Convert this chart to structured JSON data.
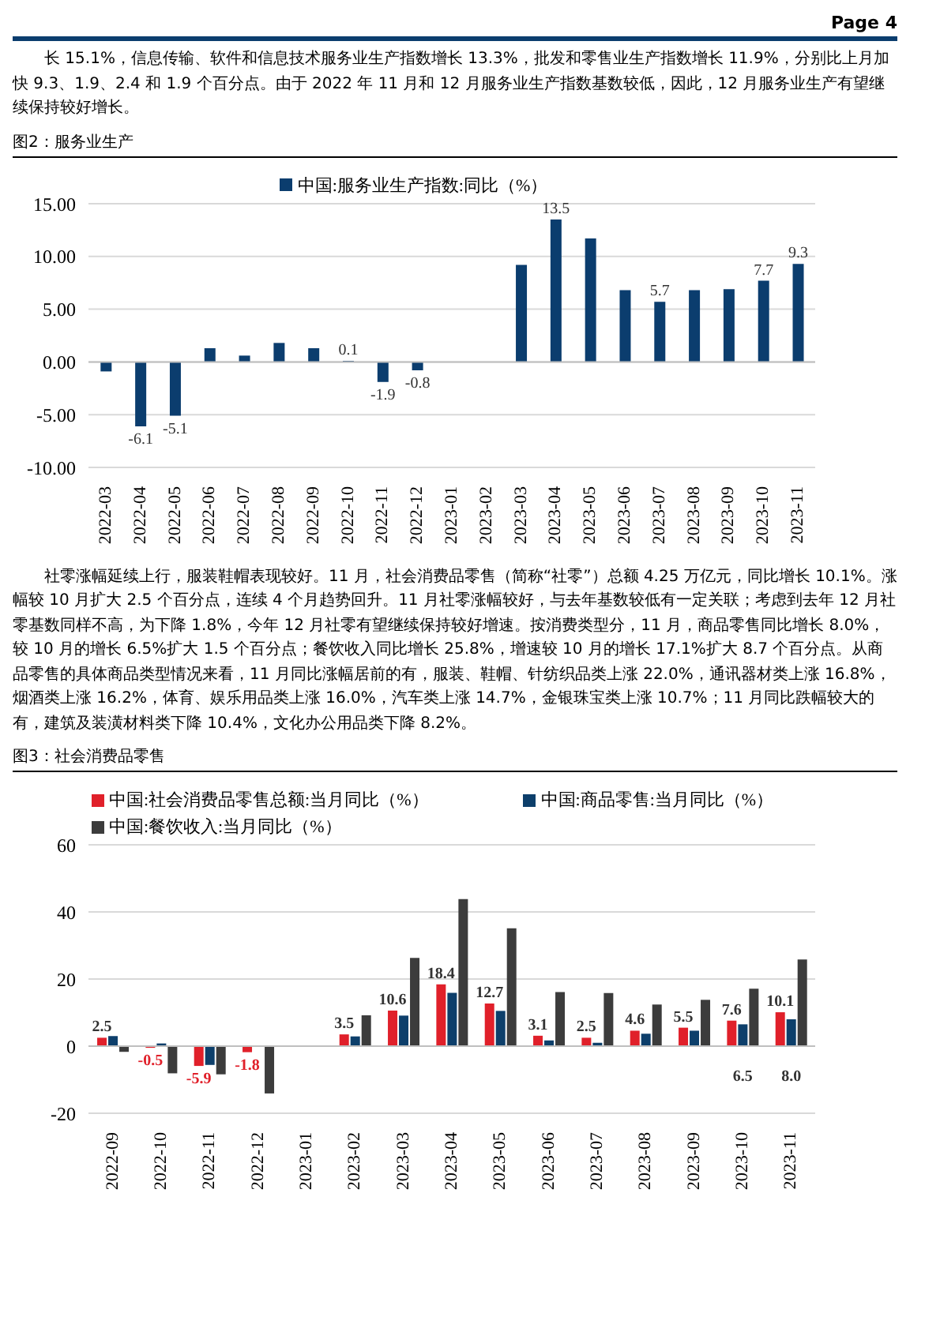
{
  "chart_data": [
    {
      "type": "bar",
      "title": "图2：服务业生产",
      "annotations": [
        "Page 4",
        "长 15.1%，信息传输、软件和信息技术服务业生产指数增长 13.3%，批发和零售业生产指数增长 11.9%，分别比上月加快 9.3、1.9、2.4 和 1.9 个百分点。由于 2022 年 11 月和 12 月服务业生产指数基数较低，因此，12 月服务业生产有望继续保持较好增长。"
      ],
      "categories": [
        "2022-03",
        "2022-04",
        "2022-05",
        "2022-06",
        "2022-07",
        "2022-08",
        "2022-09",
        "2022-10",
        "2022-11",
        "2022-12",
        "2023-01",
        "2023-02",
        "2023-03",
        "2023-04",
        "2023-05",
        "2023-06",
        "2023-07",
        "2023-08",
        "2023-09",
        "2023-10",
        "2023-11"
      ],
      "series": [
        {
          "name": "中国:服务业生产指数:同比（%）",
          "color": "#0b3d6e",
          "values": [
            -0.9,
            -6.1,
            -5.1,
            1.3,
            0.6,
            1.8,
            1.3,
            0.1,
            -1.9,
            -0.8,
            null,
            null,
            9.2,
            13.5,
            11.7,
            6.8,
            5.7,
            6.8,
            6.9,
            7.7,
            9.3
          ],
          "value_labels": [
            null,
            "-6.1",
            "-5.1",
            null,
            null,
            null,
            null,
            "0.1",
            "-1.9",
            "-0.8",
            null,
            null,
            null,
            "13.5",
            null,
            null,
            "5.7",
            null,
            null,
            "7.7",
            "9.3"
          ]
        }
      ],
      "ylim": [
        -10,
        15
      ],
      "yticks": [
        {
          "value": -10,
          "label": "-10.00"
        },
        {
          "value": -5,
          "label": "-5.00"
        },
        {
          "value": 0,
          "label": "0.00"
        },
        {
          "value": 5,
          "label": "5.00"
        },
        {
          "value": 10,
          "label": "10.00"
        },
        {
          "value": 15,
          "label": "15.00"
        }
      ],
      "grid": "y",
      "legend": "top"
    },
    {
      "type": "bar",
      "title": "图3：社会消费品零售",
      "annotations": [
        "社零涨幅延续上行，服装鞋帽表现较好。11 月，社会消费品零售（简称“社零”）总额 4.25 万亿元，同比增长 10.1%。涨幅较 10 月扩大 2.5 个百分点，连续 4 个月趋势回升。11 月社零涨幅较好，与去年基数较低有一定关联；考虑到去年 12 月社零基数同样不高，为下降 1.8%，今年 12 月社零有望继续保持较好增速。按消费类型分，11 月，商品零售同比增长 8.0%，较 10 月的增长 6.5%扩大 1.5 个百分点；餐饮收入同比增长 25.8%，增速较 10 月的增长 17.1%扩大 8.7 个百分点。从商品零售的具体商品类型情况来看，11 月同比涨幅居前的有，服装、鞋帽、针纺织品类上涨 22.0%，通讯器材类上涨 16.8%，烟酒类上涨 16.2%，体育、娱乐用品类上涨 16.0%，汽车类上涨 14.7%，金银珠宝类上涨 10.7%；11 月同比跌幅较大的有，建筑及装潢材料类下降 10.4%，文化办公用品类下降 8.2%。"
      ],
      "categories": [
        "2022-09",
        "2022-10",
        "2022-11",
        "2022-12",
        "2023-01",
        "2023-02",
        "2023-03",
        "2023-04",
        "2023-05",
        "2023-06",
        "2023-07",
        "2023-08",
        "2023-09",
        "2023-10",
        "2023-11"
      ],
      "series": [
        {
          "name": "中国:社会消费品零售总额:当月同比（%）",
          "color": "#e0202a",
          "values": [
            2.5,
            -0.5,
            -5.9,
            -1.8,
            null,
            3.5,
            10.6,
            18.4,
            12.7,
            3.1,
            2.5,
            4.6,
            5.5,
            7.6,
            10.1
          ],
          "value_labels": [
            "2.5",
            "-0.5",
            "-5.9",
            "-1.8",
            null,
            "3.5",
            "10.6",
            "18.4",
            "12.7",
            "3.1",
            "2.5",
            "4.6",
            "5.5",
            "7.6",
            "10.1"
          ]
        },
        {
          "name": "中国:商品零售:当月同比（%）",
          "color": "#0d3f6b",
          "values": [
            3.0,
            0.8,
            -5.6,
            null,
            null,
            2.9,
            9.1,
            15.9,
            10.5,
            1.7,
            1.0,
            3.7,
            4.6,
            6.5,
            8.0
          ],
          "value_labels": [
            null,
            null,
            null,
            null,
            null,
            null,
            null,
            null,
            null,
            null,
            null,
            null,
            null,
            "6.5",
            "8.0"
          ]
        },
        {
          "name": "中国:餐饮收入:当月同比（%）",
          "color": "#3c3c3c",
          "values": [
            -1.7,
            -8.1,
            -8.4,
            -14.1,
            null,
            9.2,
            26.3,
            43.8,
            35.1,
            16.1,
            15.8,
            12.4,
            13.8,
            17.1,
            25.8
          ]
        }
      ],
      "ylim": [
        -20,
        60
      ],
      "yticks": [
        -20,
        0,
        20,
        40,
        60
      ],
      "grid": "y",
      "legend": "top"
    }
  ]
}
